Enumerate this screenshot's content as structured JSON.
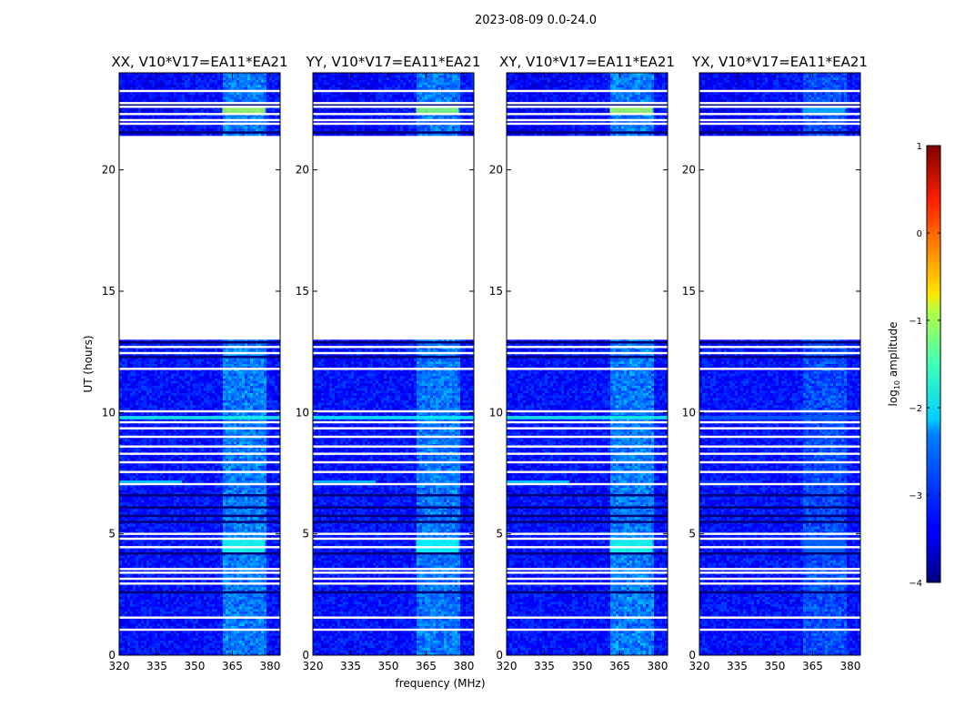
{
  "figure_title": "2023-08-09 0.0-24.0",
  "chart_data": {
    "type": "heatmap",
    "xlabel": "frequency (MHz)",
    "ylabel": "UT (hours)",
    "xlim": [
      320,
      384
    ],
    "ylim": [
      0,
      24
    ],
    "x_ticks": [
      "320",
      "335",
      "350",
      "365",
      "380"
    ],
    "x_tick_values": [
      320,
      335,
      350,
      365,
      380
    ],
    "y_ticks": [
      "0",
      "5",
      "10",
      "15",
      "20"
    ],
    "y_tick_values": [
      0,
      5,
      10,
      15,
      20
    ],
    "panels": [
      {
        "title": "XX, V10*V17=EA11*EA21",
        "polarization": "XX",
        "strength": 1.0
      },
      {
        "title": "YY, V10*V17=EA11*EA21",
        "polarization": "YY",
        "strength": 0.95
      },
      {
        "title": "XY, V10*V17=EA11*EA21",
        "polarization": "XY",
        "strength": 1.0
      },
      {
        "title": "YX, V10*V17=EA11*EA21",
        "polarization": "YX",
        "strength": 0.55
      }
    ],
    "data_gap_hours": [
      13.0,
      21.4
    ],
    "flagged_hours": [
      1.05,
      1.55,
      2.95,
      3.15,
      3.4,
      3.55,
      4.45,
      4.8,
      5.0,
      7.05,
      7.55,
      7.95,
      8.3,
      8.6,
      9.0,
      9.35,
      9.6,
      10.05,
      11.8,
      12.45,
      12.7,
      21.9,
      22.05,
      22.3,
      22.6,
      22.75,
      23.25
    ],
    "dark_hours": [
      2.6,
      4.2,
      5.5,
      5.75,
      6.1,
      6.6,
      12.3,
      12.9,
      21.55,
      22.7
    ],
    "bright_features": [
      {
        "hours": [
          22.3,
          22.7
        ],
        "freq_mhz": [
          361,
          378
        ],
        "log10_amplitude": -1.3
      },
      {
        "hours": [
          4.2,
          4.8
        ],
        "freq_mhz": [
          361,
          378
        ],
        "log10_amplitude": -2.0
      },
      {
        "hours": [
          9.72,
          9.86
        ],
        "freq_mhz": [
          320,
          384
        ],
        "log10_amplitude": -2.0
      },
      {
        "hours": [
          7.05,
          7.2
        ],
        "freq_mhz": [
          320,
          345
        ],
        "log10_amplitude": -2.3
      }
    ],
    "rfi_band_mhz": [
      361,
      379
    ],
    "colorbar": {
      "label_prefix": "log",
      "label_sub": "10",
      "label_suffix": " amplitude",
      "range": [
        -4,
        1
      ],
      "tick_values": [
        -4,
        -3,
        -2,
        -1,
        0,
        1
      ],
      "ticks": [
        "−4",
        "−3",
        "−2",
        "−1",
        "0",
        "1"
      ],
      "colormap": "jet"
    }
  }
}
